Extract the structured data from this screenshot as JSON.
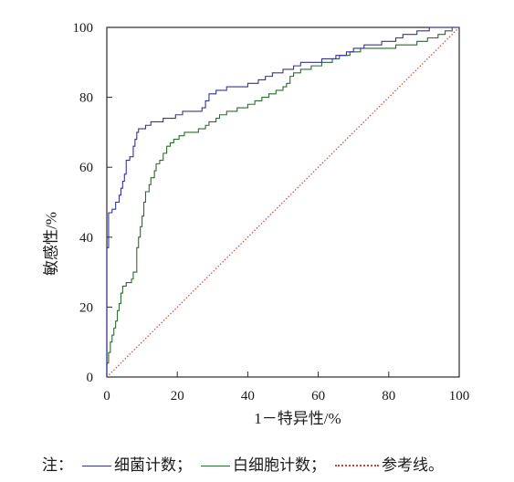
{
  "chart_data": {
    "type": "line",
    "xlabel": "1－特异性/%",
    "ylabel": "敏感性/%",
    "xlim": [
      0,
      100
    ],
    "ylim": [
      0,
      100
    ],
    "x_ticks": [
      "0",
      "20",
      "40",
      "60",
      "80",
      "100"
    ],
    "y_ticks": [
      "0",
      "20",
      "40",
      "60",
      "80",
      "100"
    ],
    "grid": false,
    "legend_position": "below",
    "series": [
      {
        "name": "细菌计数",
        "color": "#34359a",
        "line_style": "solid",
        "points": [
          [
            0,
            0
          ],
          [
            0,
            37
          ],
          [
            0.5,
            37
          ],
          [
            0.5,
            47
          ],
          [
            1.5,
            47
          ],
          [
            1.5,
            48
          ],
          [
            2.5,
            48
          ],
          [
            2.5,
            50
          ],
          [
            3.5,
            50
          ],
          [
            3.5,
            52
          ],
          [
            4,
            52
          ],
          [
            4,
            54
          ],
          [
            4.5,
            54
          ],
          [
            4.5,
            56
          ],
          [
            5,
            56
          ],
          [
            5,
            58
          ],
          [
            5.5,
            58
          ],
          [
            5.5,
            62
          ],
          [
            6.5,
            62
          ],
          [
            6.5,
            63
          ],
          [
            7.5,
            63
          ],
          [
            7.5,
            66
          ],
          [
            8,
            66
          ],
          [
            8,
            68
          ],
          [
            8.5,
            68
          ],
          [
            8.5,
            70
          ],
          [
            9,
            70
          ],
          [
            9,
            71
          ],
          [
            11,
            71
          ],
          [
            11,
            72
          ],
          [
            12.5,
            72
          ],
          [
            12.5,
            73
          ],
          [
            16,
            73
          ],
          [
            16,
            74
          ],
          [
            19.5,
            74
          ],
          [
            19.5,
            75
          ],
          [
            21.5,
            75
          ],
          [
            21.5,
            76
          ],
          [
            27,
            76
          ],
          [
            27,
            77
          ],
          [
            28,
            77
          ],
          [
            28,
            79
          ],
          [
            29,
            79
          ],
          [
            29,
            81
          ],
          [
            31,
            81
          ],
          [
            31,
            82
          ],
          [
            34,
            82
          ],
          [
            34,
            83
          ],
          [
            40,
            83
          ],
          [
            40,
            84
          ],
          [
            43,
            84
          ],
          [
            43,
            85
          ],
          [
            45,
            85
          ],
          [
            45,
            86
          ],
          [
            47,
            86
          ],
          [
            47,
            87
          ],
          [
            50,
            87
          ],
          [
            50,
            88
          ],
          [
            53,
            88
          ],
          [
            53,
            89
          ],
          [
            55,
            89
          ],
          [
            55,
            90
          ],
          [
            61,
            90
          ],
          [
            61,
            91
          ],
          [
            65,
            91
          ],
          [
            65,
            92
          ],
          [
            68,
            92
          ],
          [
            68,
            93
          ],
          [
            70,
            93
          ],
          [
            70,
            94
          ],
          [
            73,
            94
          ],
          [
            73,
            95
          ],
          [
            78,
            95
          ],
          [
            78,
            96
          ],
          [
            82,
            96
          ],
          [
            82,
            97
          ],
          [
            84,
            97
          ],
          [
            84,
            98
          ],
          [
            88,
            98
          ],
          [
            88,
            99
          ],
          [
            91.5,
            99
          ],
          [
            91.5,
            100
          ],
          [
            100,
            100
          ]
        ]
      },
      {
        "name": "白细胞计数",
        "color": "#2c6a33",
        "line_style": "solid",
        "points": [
          [
            0,
            0
          ],
          [
            0,
            4
          ],
          [
            0.5,
            4
          ],
          [
            0.5,
            7
          ],
          [
            1,
            7
          ],
          [
            1,
            10
          ],
          [
            1.5,
            10
          ],
          [
            1.5,
            12
          ],
          [
            2,
            12
          ],
          [
            2,
            14
          ],
          [
            2.5,
            14
          ],
          [
            2.5,
            16
          ],
          [
            3,
            16
          ],
          [
            3,
            19
          ],
          [
            3.5,
            19
          ],
          [
            3.5,
            21
          ],
          [
            4,
            21
          ],
          [
            4,
            24
          ],
          [
            4.5,
            24
          ],
          [
            4.5,
            26
          ],
          [
            5.5,
            26
          ],
          [
            5.5,
            27
          ],
          [
            7,
            27
          ],
          [
            7,
            28
          ],
          [
            7.5,
            28
          ],
          [
            7.5,
            30
          ],
          [
            8.5,
            30
          ],
          [
            8.5,
            37
          ],
          [
            9,
            37
          ],
          [
            9,
            40
          ],
          [
            9.5,
            40
          ],
          [
            9.5,
            43
          ],
          [
            10,
            43
          ],
          [
            10,
            46
          ],
          [
            10.5,
            46
          ],
          [
            10.5,
            50
          ],
          [
            11,
            50
          ],
          [
            11,
            53
          ],
          [
            12,
            53
          ],
          [
            12,
            55
          ],
          [
            12.5,
            55
          ],
          [
            12.5,
            57
          ],
          [
            13.5,
            57
          ],
          [
            13.5,
            59
          ],
          [
            14,
            59
          ],
          [
            14,
            61
          ],
          [
            15,
            61
          ],
          [
            15,
            62
          ],
          [
            16,
            62
          ],
          [
            16,
            64
          ],
          [
            17,
            64
          ],
          [
            17,
            66
          ],
          [
            18,
            66
          ],
          [
            18,
            67
          ],
          [
            19,
            67
          ],
          [
            19,
            68
          ],
          [
            20.5,
            68
          ],
          [
            20.5,
            69
          ],
          [
            22,
            69
          ],
          [
            22,
            70
          ],
          [
            26,
            70
          ],
          [
            26,
            71
          ],
          [
            28,
            71
          ],
          [
            28,
            72
          ],
          [
            29,
            72
          ],
          [
            29,
            73
          ],
          [
            31,
            73
          ],
          [
            31,
            74
          ],
          [
            32,
            74
          ],
          [
            32,
            75
          ],
          [
            34,
            75
          ],
          [
            34,
            76
          ],
          [
            37,
            76
          ],
          [
            37,
            77
          ],
          [
            40,
            77
          ],
          [
            40,
            78
          ],
          [
            42,
            78
          ],
          [
            42,
            79
          ],
          [
            44,
            79
          ],
          [
            44,
            80
          ],
          [
            46,
            80
          ],
          [
            46,
            81
          ],
          [
            48,
            81
          ],
          [
            48,
            82
          ],
          [
            50,
            82
          ],
          [
            50,
            83
          ],
          [
            51,
            83
          ],
          [
            51,
            84
          ],
          [
            52,
            84
          ],
          [
            52,
            86
          ],
          [
            53,
            86
          ],
          [
            53,
            87
          ],
          [
            55,
            87
          ],
          [
            55,
            88
          ],
          [
            58,
            88
          ],
          [
            58,
            89
          ],
          [
            61,
            89
          ],
          [
            61,
            90
          ],
          [
            64,
            90
          ],
          [
            64,
            91
          ],
          [
            66,
            91
          ],
          [
            66,
            92
          ],
          [
            69,
            92
          ],
          [
            69,
            93
          ],
          [
            72,
            93
          ],
          [
            72,
            94
          ],
          [
            82,
            94
          ],
          [
            82,
            95
          ],
          [
            88,
            95
          ],
          [
            88,
            96
          ],
          [
            91,
            96
          ],
          [
            91,
            97
          ],
          [
            94,
            97
          ],
          [
            94,
            98
          ],
          [
            96,
            98
          ],
          [
            96,
            99
          ],
          [
            98,
            99
          ],
          [
            98,
            100
          ],
          [
            100,
            100
          ]
        ]
      },
      {
        "name": "参考线",
        "color": "#c8423a",
        "line_style": "dotted",
        "points": [
          [
            0,
            0
          ],
          [
            100,
            100
          ]
        ]
      }
    ]
  },
  "note": {
    "prefix": "注：",
    "separators": [
      "；",
      "；",
      "。"
    ]
  }
}
